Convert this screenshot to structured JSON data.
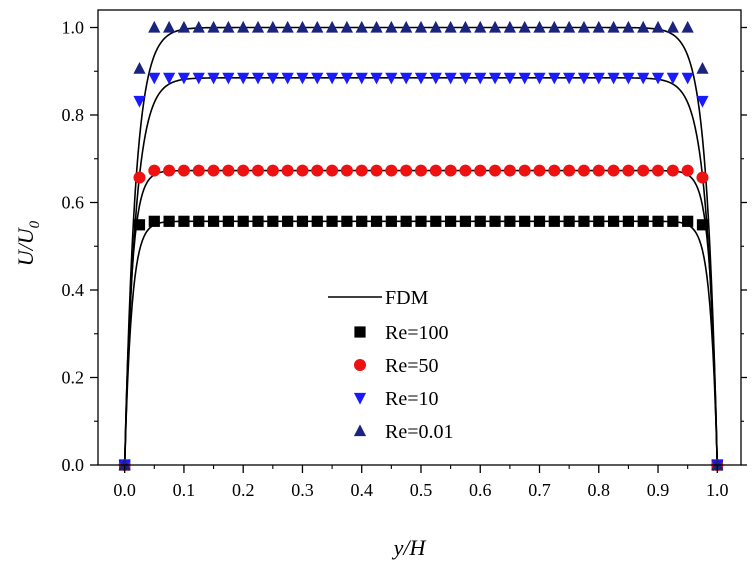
{
  "chart_data": {
    "type": "line",
    "title": "",
    "xlabel": "y/H",
    "ylabel_main": "U/U",
    "ylabel_sub": "0",
    "xlim": [
      -0.045,
      1.04
    ],
    "ylim": [
      0.0,
      1.04
    ],
    "x_ticks": [
      "0.0",
      "0.1",
      "0.2",
      "0.3",
      "0.4",
      "0.5",
      "0.6",
      "0.7",
      "0.8",
      "0.9",
      "1.0"
    ],
    "y_ticks": [
      "0.0",
      "0.2",
      "0.4",
      "0.6",
      "0.8",
      "1.0"
    ],
    "legend_position": "center",
    "legend": {
      "line_label": "FDM",
      "items": [
        {
          "label": "Re=100",
          "series": 0
        },
        {
          "label": "Re=50",
          "series": 1
        },
        {
          "label": "Re=10",
          "series": 2
        },
        {
          "label": "Re=0.01",
          "series": 3
        }
      ]
    },
    "line_color": "#000000",
    "x": [
      0.0,
      0.025,
      0.05,
      0.075,
      0.1,
      0.125,
      0.15,
      0.175,
      0.2,
      0.225,
      0.25,
      0.275,
      0.3,
      0.325,
      0.35,
      0.375,
      0.4,
      0.425,
      0.45,
      0.475,
      0.5,
      0.525,
      0.55,
      0.575,
      0.6,
      0.625,
      0.65,
      0.675,
      0.7,
      0.725,
      0.75,
      0.775,
      0.8,
      0.825,
      0.85,
      0.875,
      0.9,
      0.925,
      0.95,
      0.975,
      1.0
    ],
    "series": [
      {
        "name": "Re=100",
        "marker": "square",
        "color": "#000000",
        "plateau": 0.557,
        "edge": 0.549
      },
      {
        "name": "Re=50",
        "marker": "circle",
        "color": "#ee1111",
        "plateau": 0.673,
        "edge": 0.657
      },
      {
        "name": "Re=10",
        "marker": "triangle-down",
        "color": "#1a1aff",
        "plateau": 0.885,
        "edge": 0.832
      },
      {
        "name": "Re=0.01",
        "marker": "triangle-up",
        "color": "#1a237e",
        "plateau": 1.0,
        "edge": 0.906
      }
    ]
  }
}
